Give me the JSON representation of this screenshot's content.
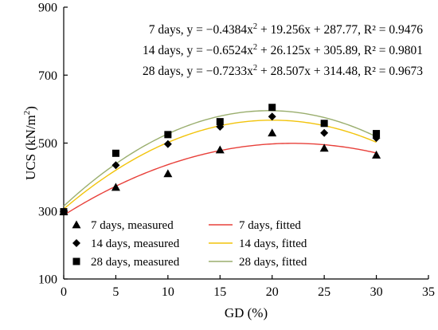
{
  "chart_data": {
    "type": "scatter",
    "xlabel": "GD (%)",
    "ylabel_main": "UCS (kN/m",
    "ylabel_sup": "2",
    "ylabel_close": ")",
    "xlim": [
      0,
      35
    ],
    "ylim": [
      100,
      900
    ],
    "xticks": [
      0,
      5,
      10,
      15,
      20,
      25,
      30,
      35
    ],
    "yticks": [
      100,
      300,
      500,
      700,
      900
    ],
    "grid": false,
    "legend_position": "bottom-left",
    "equations": [
      {
        "pre": "7 days, y = −0.4384x",
        "sup": "2",
        "post": " + 19.256x + 287.77, R² = 0.9476"
      },
      {
        "pre": "14 days, y = −0.6524x",
        "sup": "2",
        "post": " + 26.125x + 305.89, R² = 0.9801"
      },
      {
        "pre": "28 days, y = −0.7233x",
        "sup": "2",
        "post": " + 28.507x + 314.48, R² = 0.9673"
      }
    ],
    "series": [
      {
        "name": "7 days, measured",
        "fit_name": "7 days, fitted",
        "marker": "triangle",
        "marker_color": "#000000",
        "fit_color": "#e8403a",
        "x": [
          0,
          5,
          10,
          15,
          20,
          25,
          30
        ],
        "y": [
          298,
          370,
          410,
          480,
          530,
          485,
          465
        ],
        "coef": [
          -0.4384,
          19.256,
          287.77
        ]
      },
      {
        "name": "14 days, measured",
        "fit_name": "14 days, fitted",
        "marker": "diamond",
        "marker_color": "#000000",
        "fit_color": "#f2c40c",
        "x": [
          0,
          5,
          10,
          15,
          20,
          25,
          30
        ],
        "y": [
          298,
          435,
          497,
          548,
          578,
          530,
          515
        ],
        "coef": [
          -0.6524,
          26.125,
          305.89
        ]
      },
      {
        "name": "28 days, measured",
        "fit_name": "28 days, fitted",
        "marker": "square",
        "marker_color": "#000000",
        "fit_color": "#9aae6e",
        "x": [
          0,
          5,
          10,
          15,
          20,
          25,
          30
        ],
        "y": [
          298,
          470,
          525,
          563,
          605,
          558,
          528
        ],
        "coef": [
          -0.7233,
          28.507,
          314.48
        ]
      }
    ]
  }
}
